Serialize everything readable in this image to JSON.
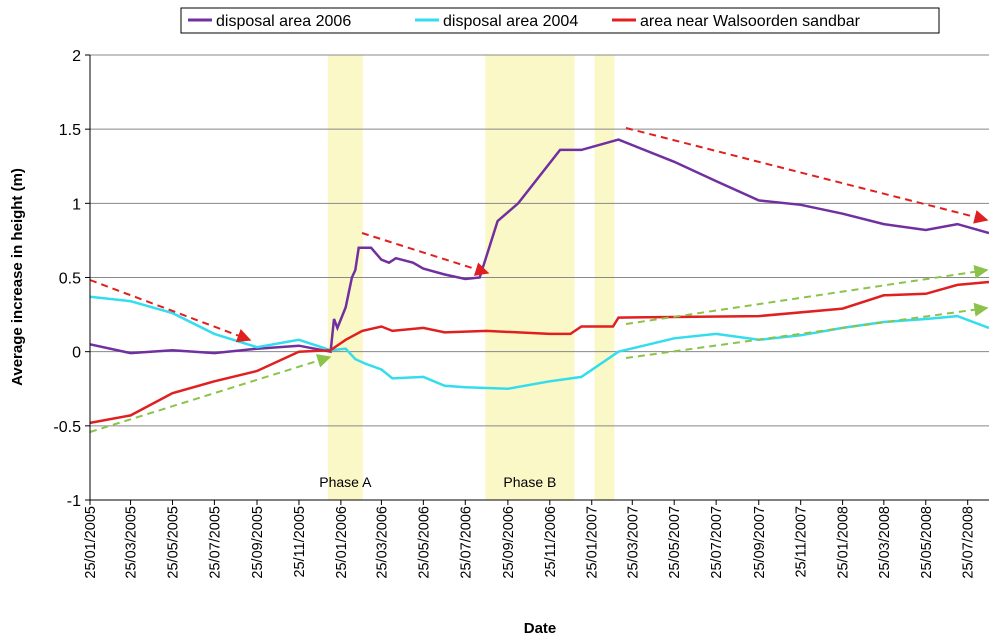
{
  "chart_data": {
    "type": "line",
    "y_label": "Average increase in height (m)",
    "x_label": "Date",
    "ylim": [
      -1,
      2
    ],
    "yticks": [
      -1,
      -0.5,
      0,
      0.5,
      1,
      1.5,
      2
    ],
    "xlim": [
      "25/01/2005",
      "25/08/2008"
    ],
    "xticks": [
      "25/01/2005",
      "25/03/2005",
      "25/05/2005",
      "25/07/2005",
      "25/09/2005",
      "25/11/2005",
      "25/01/2006",
      "25/03/2006",
      "25/05/2006",
      "25/07/2006",
      "25/09/2006",
      "25/11/2006",
      "25/01/2007",
      "25/03/2007",
      "25/05/2007",
      "25/07/2007",
      "25/09/2007",
      "25/11/2007",
      "25/01/2008",
      "25/03/2008",
      "25/05/2008",
      "25/07/2008"
    ],
    "grid": true,
    "legend": "top",
    "phases": [
      {
        "label": "Phase A",
        "start": "06/01/2006",
        "end": "26/02/2006"
      },
      {
        "label": "Phase B",
        "start": "23/08/2006",
        "end": "31/12/2006"
      },
      {
        "start": "29/01/2007",
        "end": "27/02/2007"
      }
    ],
    "series": [
      {
        "name": "disposal area 2006",
        "color": "#7030a0",
        "x": [
          "25/01/2005",
          "25/03/2005",
          "25/05/2005",
          "25/07/2005",
          "25/09/2005",
          "25/11/2005",
          "10/01/2006",
          "15/01/2006",
          "20/01/2006",
          "01/02/2006",
          "10/02/2006",
          "15/02/2006",
          "20/02/2006",
          "10/03/2006",
          "25/03/2006",
          "05/04/2006",
          "15/04/2006",
          "10/05/2006",
          "25/05/2006",
          "25/06/2006",
          "25/07/2006",
          "15/08/2006",
          "10/09/2006",
          "10/10/2006",
          "10/12/2006",
          "10/01/2007",
          "05/03/2007",
          "25/05/2007",
          "25/07/2007",
          "25/09/2007",
          "25/11/2007",
          "25/01/2008",
          "25/03/2008",
          "25/05/2008",
          "10/07/2008",
          "25/08/2008"
        ],
        "values": [
          0.05,
          -0.01,
          0.01,
          -0.01,
          0.02,
          0.04,
          0.0,
          0.22,
          0.16,
          0.3,
          0.5,
          0.55,
          0.7,
          0.7,
          0.62,
          0.6,
          0.63,
          0.6,
          0.56,
          0.52,
          0.49,
          0.5,
          0.88,
          1.0,
          1.36,
          1.36,
          1.43,
          1.28,
          1.15,
          1.02,
          0.99,
          0.93,
          0.86,
          0.82,
          0.86,
          0.8
        ]
      },
      {
        "name": "disposal area 2004",
        "color": "#33ddee",
        "x": [
          "25/01/2005",
          "25/03/2005",
          "25/05/2005",
          "25/07/2005",
          "25/09/2005",
          "25/11/2005",
          "10/01/2006",
          "01/02/2006",
          "15/02/2006",
          "01/03/2006",
          "25/03/2006",
          "10/04/2006",
          "25/05/2006",
          "25/06/2006",
          "25/07/2006",
          "25/09/2006",
          "25/11/2006",
          "10/01/2007",
          "05/03/2007",
          "25/05/2007",
          "25/07/2007",
          "25/09/2007",
          "25/11/2007",
          "25/01/2008",
          "25/03/2008",
          "25/05/2008",
          "10/07/2008",
          "25/08/2008"
        ],
        "values": [
          0.37,
          0.34,
          0.26,
          0.12,
          0.03,
          0.08,
          0.01,
          0.02,
          -0.05,
          -0.08,
          -0.12,
          -0.18,
          -0.17,
          -0.23,
          -0.24,
          -0.25,
          -0.2,
          -0.17,
          0.0,
          0.09,
          0.12,
          0.08,
          0.11,
          0.16,
          0.2,
          0.22,
          0.24,
          0.16
        ]
      },
      {
        "name": "area near Walsoorden sandbar",
        "color": "#e02020",
        "x": [
          "25/01/2005",
          "25/03/2005",
          "25/05/2005",
          "25/07/2005",
          "25/09/2005",
          "25/11/2005",
          "10/01/2006",
          "01/02/2006",
          "25/02/2006",
          "25/03/2006",
          "10/04/2006",
          "25/05/2006",
          "25/06/2006",
          "25/08/2006",
          "25/11/2006",
          "25/12/2006",
          "10/01/2007",
          "25/02/2007",
          "05/03/2007",
          "25/09/2007",
          "25/01/2008",
          "25/03/2008",
          "25/05/2008",
          "10/07/2008",
          "25/08/2008"
        ],
        "values": [
          -0.48,
          -0.43,
          -0.28,
          -0.2,
          -0.13,
          0.0,
          0.01,
          0.08,
          0.14,
          0.17,
          0.14,
          0.16,
          0.13,
          0.14,
          0.12,
          0.12,
          0.17,
          0.17,
          0.23,
          0.24,
          0.29,
          0.38,
          0.39,
          0.45,
          0.47
        ]
      }
    ]
  }
}
